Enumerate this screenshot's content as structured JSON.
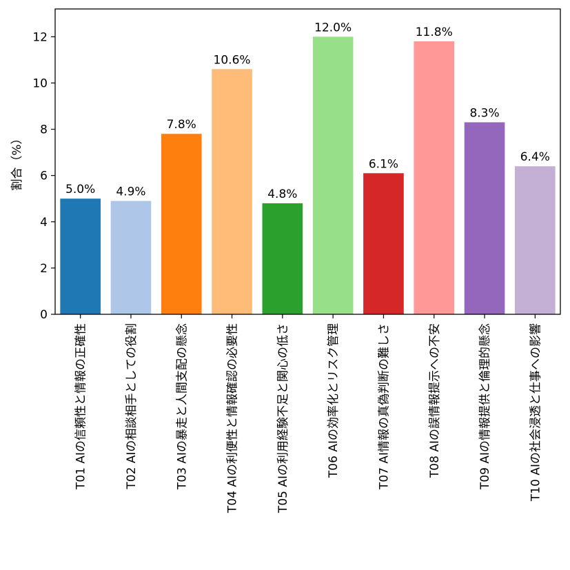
{
  "chart_data": {
    "type": "bar",
    "title": "",
    "xlabel": "",
    "ylabel": "割合（%）",
    "ylim": [
      0,
      13.2
    ],
    "yticks": [
      0,
      2,
      4,
      6,
      8,
      10,
      12
    ],
    "grid": false,
    "legend": "none",
    "categories": [
      "T01 AIの信頼性と情報の正確性",
      "T02 AIの相談相手としての役割",
      "T03 AIの暴走と人間支配の懸念",
      "T04 AIの利便性と情報確認の必要性",
      "T05 AIの利用経験不足と関心の低さ",
      "T06 AIの効率化とリスク管理",
      "T07 AI情報の真偽判断の難しさ",
      "T08 AIの誤情報提示への不安",
      "T09 AIの情報提供と倫理的懸念",
      "T10 AIの社会浸透と仕事への影響"
    ],
    "values": [
      5.0,
      4.9,
      7.8,
      10.6,
      4.8,
      12.0,
      6.1,
      11.8,
      8.3,
      6.4
    ],
    "value_labels": [
      "5.0%",
      "4.9%",
      "7.8%",
      "10.6%",
      "4.8%",
      "12.0%",
      "6.1%",
      "11.8%",
      "8.3%",
      "6.4%"
    ],
    "colors": [
      "#1f77b4",
      "#aec7e8",
      "#ff7f0e",
      "#ffbb78",
      "#2ca02c",
      "#98df8a",
      "#d62728",
      "#ff9896",
      "#9467bd",
      "#c5b0d5"
    ]
  }
}
